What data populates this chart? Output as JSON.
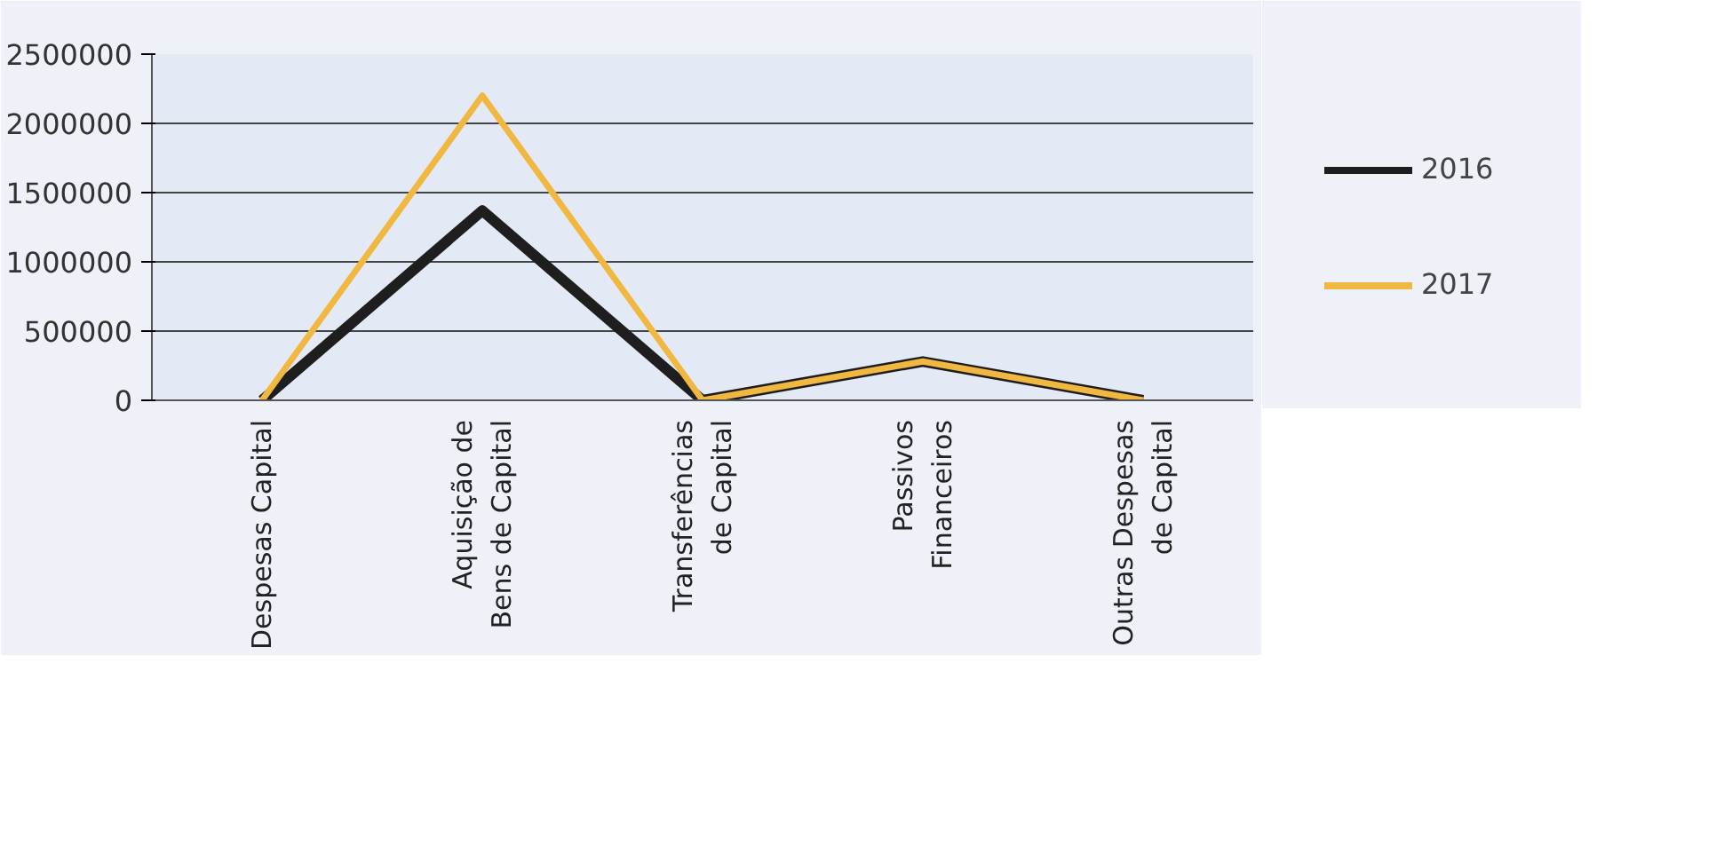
{
  "chart_data": {
    "type": "line",
    "categories": [
      "Despesas Capital",
      "Aquisição de Bens de Capital",
      "Transferências de Capital",
      "Passivos Financeiros",
      "Outras Despesas de Capital"
    ],
    "series": [
      {
        "name": "2016",
        "color": "#1e1e1e",
        "values": [
          0,
          1370000,
          0,
          280000,
          0
        ]
      },
      {
        "name": "2017",
        "color": "#f0b840",
        "values": [
          0,
          2200000,
          0,
          280000,
          0
        ]
      }
    ],
    "ylim": [
      0,
      2500000
    ],
    "yticks": [
      0,
      500000,
      1000000,
      1500000,
      2000000,
      2500000
    ],
    "grid": "y",
    "legend": "right",
    "marker": "none",
    "line_style": "solid"
  }
}
